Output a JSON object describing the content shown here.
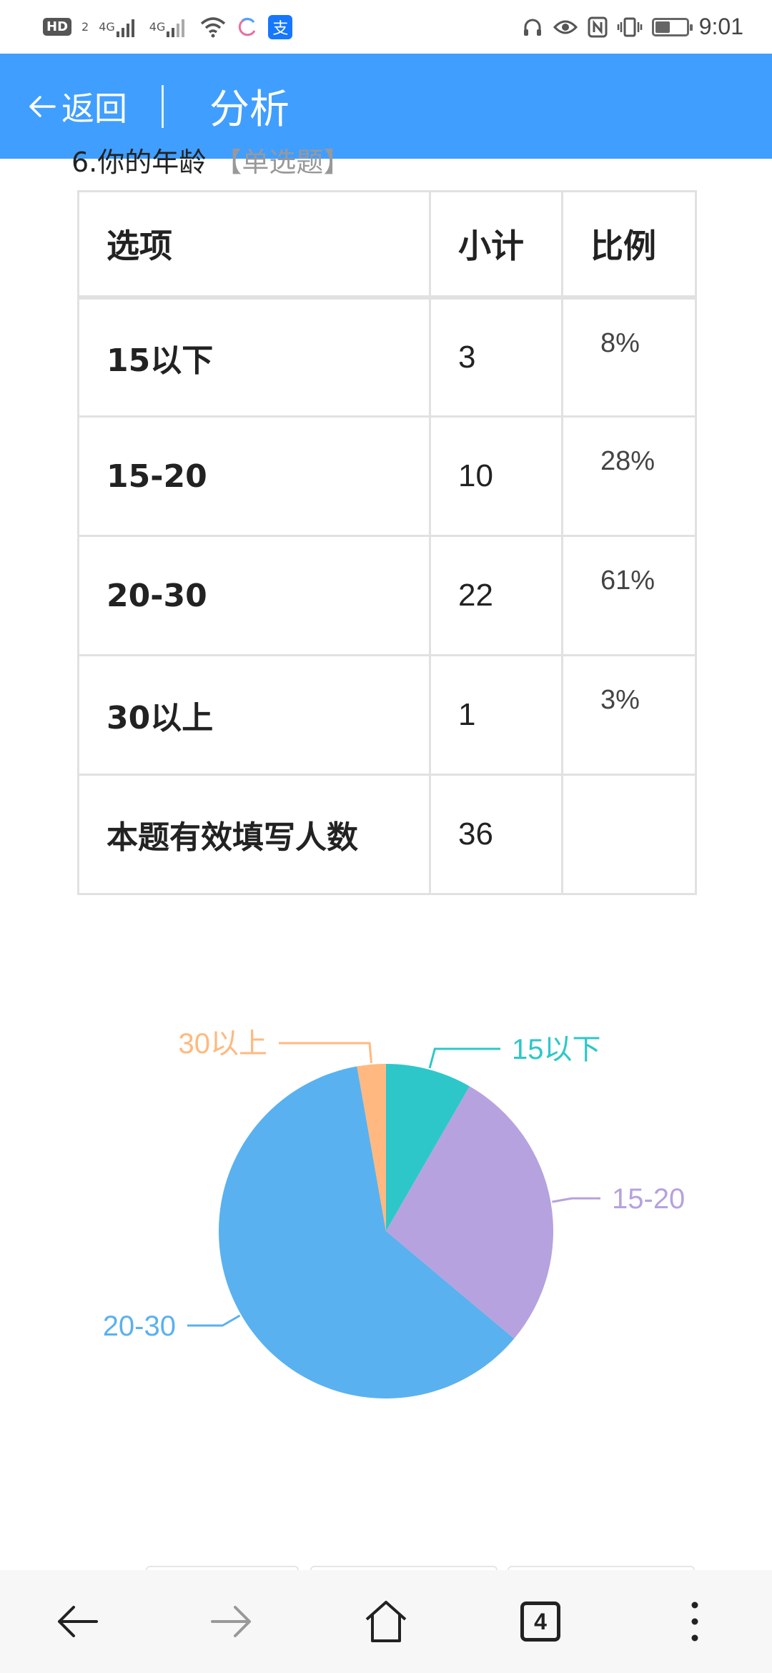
{
  "status_bar": {
    "left": {
      "hd": "HD",
      "hd_sub": "2",
      "sig1": "4G",
      "sig2": "4G"
    },
    "alipay_glyph": "支",
    "time": "9:01",
    "battery_level": 0.45
  },
  "header": {
    "back_label": "返回",
    "title": "分析",
    "background": "#409eff"
  },
  "question": {
    "text": "6.你的年龄",
    "type": "【单选题】"
  },
  "table": {
    "headers": [
      "选项",
      "小计",
      "比例"
    ],
    "rows": [
      {
        "option": "15以下",
        "count": "3",
        "percent": "8%"
      },
      {
        "option": "15-20",
        "count": "10",
        "percent": "28%"
      },
      {
        "option": "20-30",
        "count": "22",
        "percent": "61%"
      },
      {
        "option": "30以上",
        "count": "1",
        "percent": "3%"
      }
    ],
    "total": {
      "label": "本题有效填写人数",
      "count": "36"
    }
  },
  "chart_data": {
    "type": "pie",
    "categories": [
      "15以下",
      "15-20",
      "20-30",
      "30以上"
    ],
    "values": [
      3,
      10,
      22,
      1
    ],
    "colors": [
      "#2ec7c9",
      "#b6a2de",
      "#5ab1ef",
      "#ffb980"
    ]
  },
  "bottom_nav": {
    "tab_count": "4",
    "icons": [
      "back-arrow-icon",
      "forward-arrow-icon",
      "home-icon",
      "tabs-icon",
      "more-icon"
    ]
  }
}
